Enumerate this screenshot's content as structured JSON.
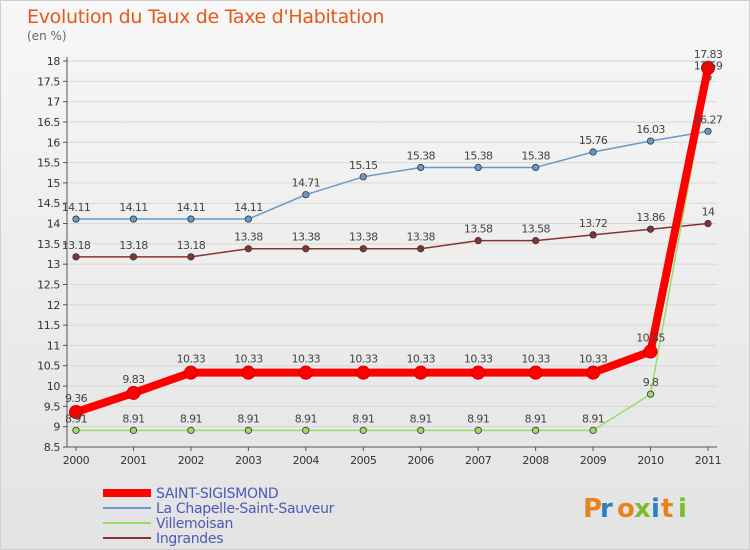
{
  "title": "Evolution du Taux de Taxe d'Habitation",
  "subtitle": "(en %)",
  "logo": "Proxiti",
  "chart_data": {
    "type": "line",
    "title": "Evolution du Taux de Taxe d'Habitation",
    "ylabel": "(en %)",
    "x": [
      2000,
      2001,
      2002,
      2003,
      2004,
      2005,
      2006,
      2007,
      2008,
      2009,
      2010,
      2011
    ],
    "ylim": [
      8.5,
      18
    ],
    "yticks": [
      8.5,
      9,
      9.5,
      10,
      10.5,
      11,
      11.5,
      12,
      12.5,
      13,
      13.5,
      14,
      14.5,
      15,
      15.5,
      16,
      16.5,
      17,
      17.5,
      18
    ],
    "grid": "horizontal",
    "legend": "bottom-left",
    "series": [
      {
        "name": "SAINT-SIGISMOND",
        "color": "#ff0000",
        "labels": [
          "9.36",
          "9.83",
          "10.33",
          "10.33",
          "10.33",
          "10.33",
          "10.33",
          "10.33",
          "10.33",
          "10.33",
          "10.85",
          "17.83"
        ],
        "values": [
          9.36,
          9.83,
          10.33,
          10.33,
          10.33,
          10.33,
          10.33,
          10.33,
          10.33,
          10.33,
          10.85,
          17.83
        ]
      },
      {
        "name": "La Chapelle-Saint-Sauveur",
        "color": "#6699cc",
        "labels": [
          "14.11",
          "14.11",
          "14.11",
          "14.11",
          "14.71",
          "15.15",
          "15.38",
          "15.38",
          "15.38",
          "15.76",
          "16.03",
          "16.27"
        ],
        "values": [
          14.11,
          14.11,
          14.11,
          14.11,
          14.71,
          15.15,
          15.38,
          15.38,
          15.38,
          15.76,
          16.03,
          16.27
        ]
      },
      {
        "name": "Villemoisan",
        "color": "#99dd66",
        "labels": [
          "8.91",
          "8.91",
          "8.91",
          "8.91",
          "8.91",
          "8.91",
          "8.91",
          "8.91",
          "8.91",
          "8.91",
          "9.8",
          "17.59"
        ],
        "values": [
          8.91,
          8.91,
          8.91,
          8.91,
          8.91,
          8.91,
          8.91,
          8.91,
          8.91,
          8.91,
          9.8,
          17.59
        ]
      },
      {
        "name": "Ingrandes",
        "color": "#883333",
        "labels": [
          "13.18",
          "13.18",
          "13.18",
          "13.38",
          "13.38",
          "13.38",
          "13.38",
          "13.58",
          "13.58",
          "13.72",
          "13.86",
          "14"
        ],
        "values": [
          13.18,
          13.18,
          13.18,
          13.38,
          13.38,
          13.38,
          13.38,
          13.58,
          13.58,
          13.72,
          13.86,
          14
        ]
      }
    ]
  }
}
